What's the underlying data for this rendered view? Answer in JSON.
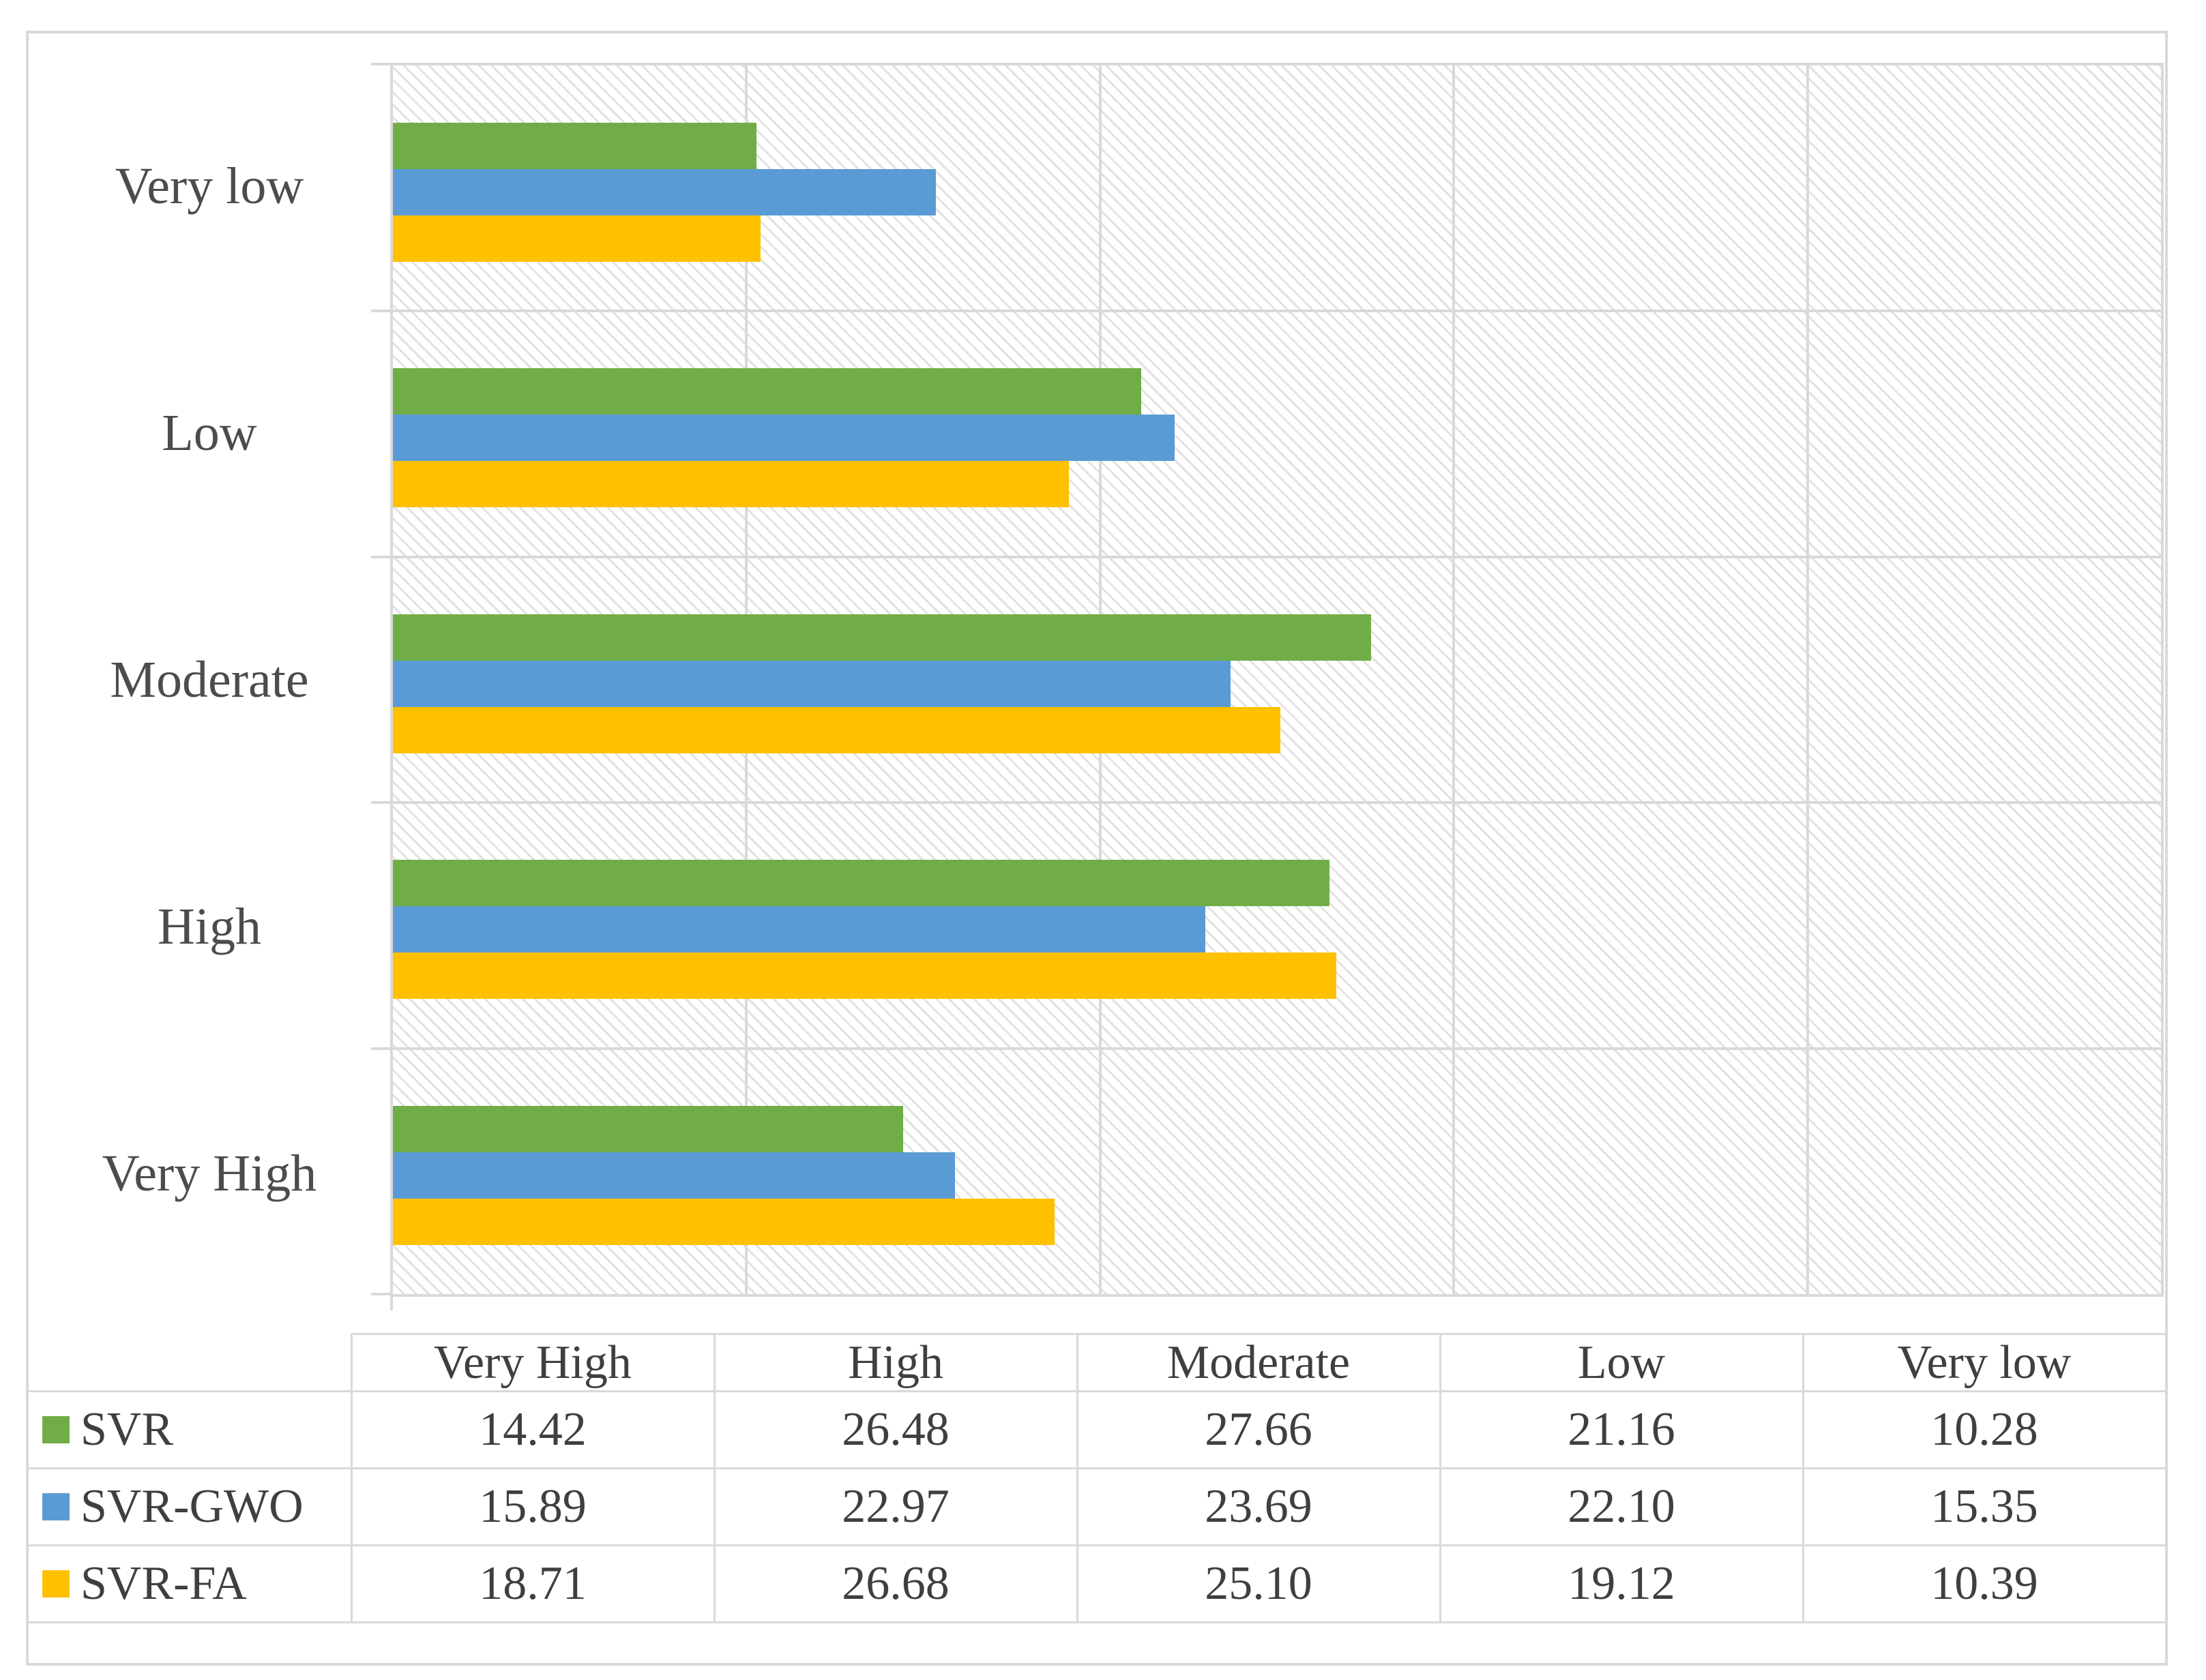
{
  "chart_data": {
    "type": "bar",
    "orientation": "horizontal",
    "title": "",
    "xlabel": "",
    "ylabel": "",
    "categories": [
      "Very High",
      "High",
      "Moderate",
      "Low",
      "Very low"
    ],
    "series": [
      {
        "name": "SVR",
        "color": "#70AD47",
        "values": [
          14.42,
          26.48,
          27.66,
          21.16,
          10.28
        ]
      },
      {
        "name": "SVR-GWO",
        "color": "#5B9BD5",
        "values": [
          15.89,
          22.97,
          23.69,
          22.1,
          15.35
        ]
      },
      {
        "name": "SVR-FA",
        "color": "#FFC000",
        "values": [
          18.71,
          26.68,
          25.1,
          19.12,
          10.39
        ]
      }
    ],
    "value_axis": {
      "min": 0,
      "max": 50,
      "gridline_interval": 10,
      "tick_labels_visible": false
    },
    "category_axis_note": "categories listed top-to-bottom on chart as Very low, Low, Moderate, High, Very High (reverse of table order)",
    "grid": true,
    "plot_background": "light-diagonal-hatch",
    "legend_position": "data-table-left-column"
  },
  "table": {
    "column_headers": [
      "Very High",
      "High",
      "Moderate",
      "Low",
      "Very low"
    ],
    "rows": [
      {
        "label": "SVR",
        "swatch_color": "#70AD47",
        "values": [
          "14.42",
          "26.48",
          "27.66",
          "21.16",
          "10.28"
        ]
      },
      {
        "label": "SVR-GWO",
        "swatch_color": "#5B9BD5",
        "values": [
          "15.89",
          "22.97",
          "23.69",
          "22.10",
          "15.35"
        ]
      },
      {
        "label": "SVR-FA",
        "swatch_color": "#FFC000",
        "values": [
          "18.71",
          "26.68",
          "25.10",
          "19.12",
          "10.39"
        ]
      }
    ]
  },
  "colors": {
    "svr_green": "#70AD47",
    "svr_gwo_blue": "#5B9BD5",
    "svr_fa_yellow": "#FFC000",
    "grid_gray": "#d9d9d9",
    "hatch_gray": "#e2e2e2",
    "chart_label_text": "#4c4c4c",
    "table_text": "#3f3f3f"
  }
}
